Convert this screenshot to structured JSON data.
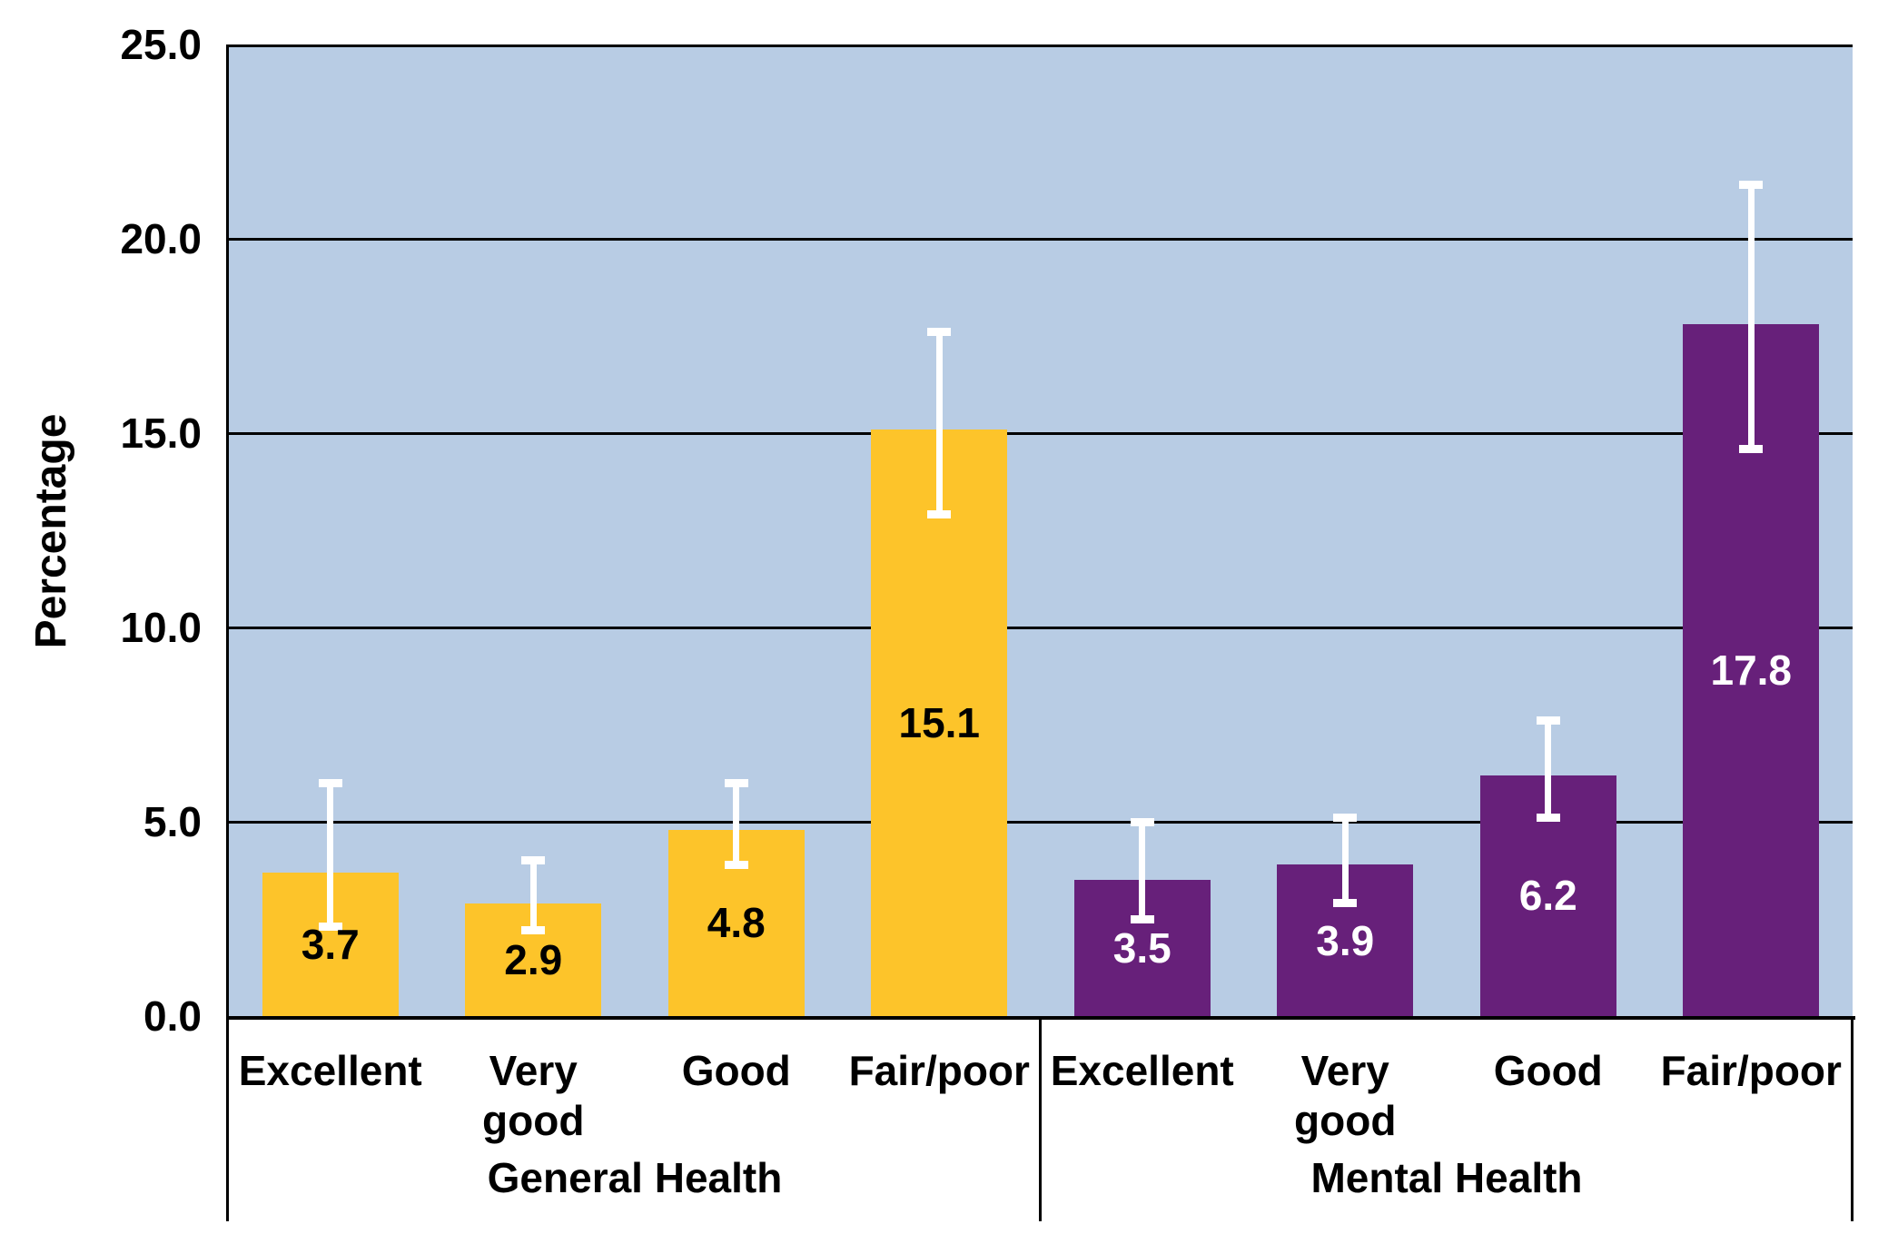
{
  "chart_data": {
    "type": "bar",
    "title": "",
    "ylabel": "Percentage",
    "xlabel": "",
    "ylim": [
      0,
      25
    ],
    "grid": true,
    "legend": "none",
    "plot_bg": "#B8CCE4",
    "gridline_color": "#000000",
    "error_bar_color": "#FFFFFF",
    "yticks": [
      {
        "value": 0,
        "label": "0.0"
      },
      {
        "value": 5,
        "label": "5.0"
      },
      {
        "value": 10,
        "label": "10.0"
      },
      {
        "value": 15,
        "label": "15.0"
      },
      {
        "value": 20,
        "label": "20.0"
      },
      {
        "value": 25,
        "label": "25.0"
      }
    ],
    "groups": [
      {
        "label": "General Health",
        "bar_color": "#FDC42A",
        "value_label_color": "#000000",
        "bars": [
          {
            "category": "Excellent",
            "value": 3.7,
            "err_low": 2.3,
            "err_high": 6.0
          },
          {
            "category": "Very\ngood",
            "value": 2.9,
            "err_low": 2.2,
            "err_high": 4.0
          },
          {
            "category": "Good",
            "value": 4.8,
            "err_low": 3.9,
            "err_high": 6.0
          },
          {
            "category": "Fair/poor",
            "value": 15.1,
            "err_low": 12.9,
            "err_high": 17.6
          }
        ]
      },
      {
        "label": "Mental Health",
        "bar_color": "#67207A",
        "value_label_color": "#FFFFFF",
        "bars": [
          {
            "category": "Excellent",
            "value": 3.5,
            "err_low": 2.5,
            "err_high": 5.0
          },
          {
            "category": "Very\ngood",
            "value": 3.9,
            "err_low": 2.9,
            "err_high": 5.1
          },
          {
            "category": "Good",
            "value": 6.2,
            "err_low": 5.1,
            "err_high": 7.6
          },
          {
            "category": "Fair/poor",
            "value": 17.8,
            "err_low": 14.6,
            "err_high": 21.4
          }
        ]
      }
    ]
  }
}
